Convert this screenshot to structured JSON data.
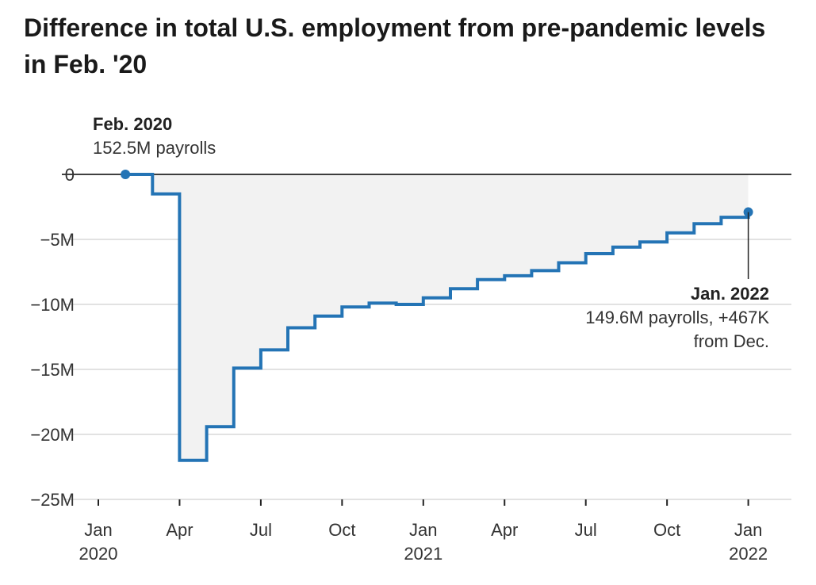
{
  "title": "Difference in total U.S. employment from pre-pandemic levels in Feb. '20",
  "chart_data": {
    "type": "line",
    "title": "Difference in total U.S. employment from pre-pandemic levels in Feb. '20",
    "step": true,
    "y_unit": "millions of jobs",
    "ylim": [
      -25,
      0
    ],
    "y_ticks": [
      0,
      -5,
      -10,
      -15,
      -20,
      -25
    ],
    "y_tick_labels": [
      "0",
      "−5M",
      "−10M",
      "−15M",
      "−20M",
      "−25M"
    ],
    "x_ticks": [
      "2020-01",
      "2020-04",
      "2020-07",
      "2020-10",
      "2021-01",
      "2021-04",
      "2021-07",
      "2021-10",
      "2022-01"
    ],
    "x_tick_labels": [
      {
        "month": "Jan",
        "year": "2020"
      },
      {
        "month": "Apr",
        "year": ""
      },
      {
        "month": "Jul",
        "year": ""
      },
      {
        "month": "Oct",
        "year": ""
      },
      {
        "month": "Jan",
        "year": "2021"
      },
      {
        "month": "Apr",
        "year": ""
      },
      {
        "month": "Jul",
        "year": ""
      },
      {
        "month": "Oct",
        "year": ""
      },
      {
        "month": "Jan",
        "year": "2022"
      }
    ],
    "series": [
      {
        "color": "#2474b5",
        "x": [
          "2020-02",
          "2020-03",
          "2020-04",
          "2020-05",
          "2020-06",
          "2020-07",
          "2020-08",
          "2020-09",
          "2020-10",
          "2020-11",
          "2020-12",
          "2021-01",
          "2021-02",
          "2021-03",
          "2021-04",
          "2021-05",
          "2021-06",
          "2021-07",
          "2021-08",
          "2021-09",
          "2021-10",
          "2021-11",
          "2021-12",
          "2022-01"
        ],
        "y": [
          0,
          -1.5,
          -22.0,
          -19.4,
          -14.9,
          -13.5,
          -11.8,
          -10.9,
          -10.2,
          -9.9,
          -10.0,
          -9.5,
          -8.8,
          -8.1,
          -7.8,
          -7.4,
          -6.8,
          -6.1,
          -5.6,
          -5.2,
          -4.5,
          -3.8,
          -3.3,
          -2.9
        ]
      }
    ],
    "annotations": {
      "start": {
        "label": "Feb. 2020",
        "detail": "152.5M payrolls"
      },
      "end": {
        "label": "Jan. 2022",
        "detail_line1": "149.6M payrolls, +467K",
        "detail_line2": "from Dec."
      }
    },
    "colors": {
      "line": "#2474b5",
      "area": "#f2f2f2",
      "grid": "#d0d0d0",
      "zero_line": "#000000"
    },
    "grid": true
  }
}
